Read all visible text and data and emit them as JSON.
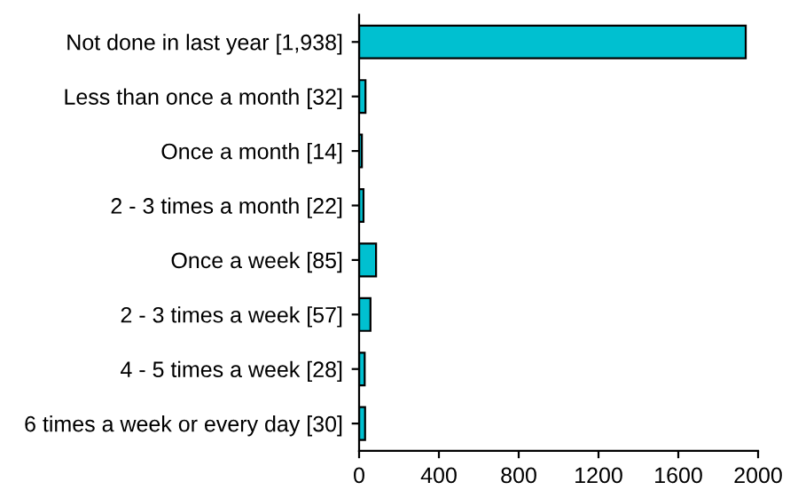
{
  "chart_data": {
    "type": "bar",
    "orientation": "horizontal",
    "categories": [
      "Not done in last year [1,938]",
      "Less than once a month [32]",
      "Once a month [14]",
      "2 - 3 times a month [22]",
      "Once a week [85]",
      "2 - 3 times a week [57]",
      "4 - 5 times a week [28]",
      "6 times a week or every day [30]"
    ],
    "values": [
      1938,
      32,
      14,
      22,
      85,
      57,
      28,
      30
    ],
    "color": "#00c0d0",
    "xlim": [
      0,
      2000
    ],
    "xticks": [
      0,
      400,
      800,
      1200,
      1600,
      2000
    ],
    "grid": false,
    "legend": false
  }
}
